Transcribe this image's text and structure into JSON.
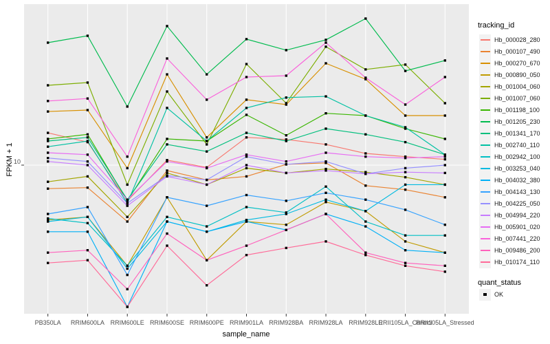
{
  "figure": {
    "background": "#ffffff",
    "panel_background": "#ebebeb",
    "grid_color": "#ffffff",
    "axis_text_color": "#4d4d4d",
    "tick_color": "#333333",
    "point_color": "#000000"
  },
  "legend": {
    "tracking_title": "tracking_id",
    "quant_title": "quant_status",
    "quant_entries": [
      {
        "label": "OK",
        "key": "black-square"
      }
    ]
  },
  "chart_data": {
    "type": "line",
    "title": "",
    "xlabel": "sample_name",
    "ylabel": "FPKM + 1",
    "y_scale": "log10",
    "ylim": [
      1.38,
      86
    ],
    "y_ticks": [
      10
    ],
    "y_tick_label": "10",
    "grid": {
      "vertical": "one-per-category",
      "horizontal_at": [
        10
      ]
    },
    "legend_position": "right",
    "point_shape": "square",
    "categories": [
      "PB350LA",
      "RRIM600LA",
      "RRIM600LE",
      "RRIM600SE",
      "RRIM600PE",
      "RRIM901LA",
      "RRIM928BA",
      "RRIM928LA",
      "RRIM928LE",
      "RRII105LA_Control",
      "RRII105LA_Stressed"
    ],
    "series": [
      {
        "name": "Hb_000028_280",
        "color": "#F8766D",
        "values": [
          15.4,
          13.6,
          6.2,
          10.7,
          9.7,
          14.5,
          14.1,
          13.2,
          11.7,
          11.2,
          10.8
        ]
      },
      {
        "name": "Hb_000107_490",
        "color": "#EA8331",
        "values": [
          7.3,
          7.4,
          4.7,
          9.3,
          8.2,
          8.6,
          10.1,
          10.3,
          7.6,
          7.2,
          6.5
        ]
      },
      {
        "name": "Hb_000270_670",
        "color": "#D89000",
        "values": [
          20.5,
          20.9,
          9.6,
          33.7,
          14.5,
          24.0,
          22.5,
          39.1,
          31.6,
          19.4,
          19.4
        ]
      },
      {
        "name": "Hb_000890_050",
        "color": "#C09B00",
        "values": [
          4.8,
          5.0,
          2.6,
          6.5,
          2.8,
          4.7,
          4.5,
          6.1,
          5.4,
          3.6,
          3.1
        ]
      },
      {
        "name": "Hb_001004_060",
        "color": "#A3A500",
        "values": [
          8.0,
          8.6,
          5.0,
          9.0,
          7.7,
          9.6,
          9.0,
          9.5,
          9.1,
          8.5,
          7.7
        ]
      },
      {
        "name": "Hb_001007_060",
        "color": "#7CAE00",
        "values": [
          29.1,
          30.2,
          7.7,
          26.8,
          13.2,
          38.7,
          22.9,
          48.8,
          36.0,
          38.4,
          22.9
        ]
      },
      {
        "name": "Hb_001198_100",
        "color": "#39B600",
        "values": [
          14.2,
          15.1,
          6.2,
          14.2,
          13.8,
          19.6,
          14.9,
          20.0,
          19.4,
          16.3,
          14.2
        ]
      },
      {
        "name": "Hb_001205_230",
        "color": "#00BB4E",
        "values": [
          51.5,
          56.5,
          21.9,
          64.3,
          33.7,
          54.0,
          46.6,
          53.5,
          71.1,
          35.3,
          40.6
        ]
      },
      {
        "name": "Hb_001341_170",
        "color": "#00BF7D",
        "values": [
          13.8,
          14.5,
          6.3,
          13.2,
          12.0,
          15.4,
          13.8,
          16.3,
          15.1,
          13.6,
          11.5
        ]
      },
      {
        "name": "Hb_002740_110",
        "color": "#00C1A3",
        "values": [
          12.8,
          13.8,
          6.0,
          21.5,
          13.8,
          21.5,
          24.7,
          25.1,
          19.4,
          16.6,
          11.5
        ]
      },
      {
        "name": "Hb_002942_100",
        "color": "#00BFC4",
        "values": [
          4.9,
          4.6,
          2.6,
          5.0,
          4.4,
          5.7,
          5.3,
          7.5,
          4.7,
          3.9,
          3.9
        ]
      },
      {
        "name": "Hb_003253_040",
        "color": "#00BAE0",
        "values": [
          4.7,
          5.0,
          2.5,
          4.7,
          4.1,
          4.8,
          5.2,
          6.3,
          5.4,
          7.7,
          7.7
        ]
      },
      {
        "name": "Hb_004032_380",
        "color": "#00B0F6",
        "values": [
          4.1,
          4.1,
          1.5,
          4.7,
          4.1,
          4.7,
          4.2,
          5.2,
          4.4,
          3.2,
          3.1
        ]
      },
      {
        "name": "Hb_004143_130",
        "color": "#35A2FF",
        "values": [
          5.2,
          5.7,
          2.3,
          6.5,
          5.8,
          6.7,
          6.2,
          6.9,
          6.3,
          5.5,
          4.5
        ]
      },
      {
        "name": "Hb_004225_050",
        "color": "#9590FF",
        "values": [
          11.0,
          10.5,
          6.0,
          8.7,
          8.2,
          11.2,
          10.1,
          10.5,
          8.9,
          9.6,
          10.0
        ]
      },
      {
        "name": "Hb_004994_220",
        "color": "#C77CFF",
        "values": [
          10.5,
          10.0,
          5.8,
          8.6,
          7.7,
          10.0,
          9.0,
          9.3,
          8.9,
          9.1,
          9.0
        ]
      },
      {
        "name": "Hb_005901_020",
        "color": "#E76BF3",
        "values": [
          11.8,
          11.5,
          6.3,
          10.5,
          9.6,
          11.5,
          10.5,
          11.8,
          11.2,
          11.0,
          11.2
        ]
      },
      {
        "name": "Hb_007441_220",
        "color": "#FA62DB",
        "values": [
          23.6,
          24.4,
          11.2,
          41.7,
          24.0,
          32.5,
          33.1,
          51.5,
          32.2,
          22.5,
          32.5
        ]
      },
      {
        "name": "Hb_009486_200",
        "color": "#FF62BC",
        "values": [
          3.1,
          3.2,
          1.9,
          4.0,
          2.8,
          3.4,
          4.2,
          5.2,
          3.1,
          2.7,
          2.6
        ]
      },
      {
        "name": "Hb_010174_110",
        "color": "#FF6A98",
        "values": [
          2.7,
          2.8,
          1.5,
          3.4,
          2.0,
          3.0,
          3.3,
          3.6,
          3.0,
          2.6,
          2.4
        ]
      }
    ]
  }
}
